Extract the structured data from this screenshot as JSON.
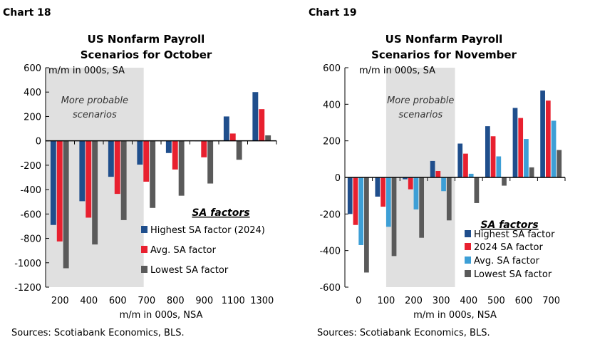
{
  "chart_data": [
    {
      "type": "bar",
      "label": "Chart 18",
      "title": [
        "US Nonfarm Payroll",
        "Scenarios for October"
      ],
      "ylabel": "m/m in 000s, SA",
      "xlabel": "m/m in 000s, NSA",
      "source": "Sources: Scotiabank Economics, BLS.",
      "ylim": [
        -1200,
        600
      ],
      "yticks": [
        600,
        400,
        200,
        0,
        -200,
        -400,
        -600,
        -800,
        -1000,
        -1200
      ],
      "categories": [
        "200",
        "400",
        "600",
        "700",
        "800",
        "900",
        "1100",
        "1300"
      ],
      "shaded_region": {
        "label": [
          "More probable",
          "scenarios"
        ],
        "categories": [
          "200",
          "400",
          "600",
          "700"
        ]
      },
      "legend_title": "SA factors",
      "legend_placement": "bottom-right",
      "series": [
        {
          "name": "Highest SA factor (2024)",
          "color": "#1f4e8c",
          "values": [
            -690,
            -495,
            -295,
            -195,
            -100,
            0,
            200,
            400
          ]
        },
        {
          "name": "Avg. SA factor",
          "color": "#e8202f",
          "values": [
            -825,
            -630,
            -435,
            -335,
            -235,
            -135,
            60,
            260
          ]
        },
        {
          "name": "Lowest SA factor",
          "color": "#5a5a5a",
          "values": [
            -1045,
            -850,
            -650,
            -550,
            -450,
            -350,
            -155,
            45
          ]
        }
      ]
    },
    {
      "type": "bar",
      "label": "Chart 19",
      "title": [
        "US Nonfarm Payroll",
        "Scenarios for November"
      ],
      "ylabel": "m/m in 000s, SA",
      "xlabel": "m/m in 000s, NSA",
      "source": "Sources: Scotiabank Economics, BLS.",
      "ylim": [
        -600,
        600
      ],
      "yticks": [
        600,
        400,
        200,
        0,
        -200,
        -400,
        -600
      ],
      "categories": [
        "0",
        "100",
        "200",
        "300",
        "400",
        "500",
        "600",
        "700"
      ],
      "shaded_region": {
        "label": [
          "More probable",
          "scenarios"
        ],
        "categories": [
          "100",
          "200",
          "300"
        ]
      },
      "legend_title": "SA factors",
      "legend_placement": "bottom-right",
      "series": [
        {
          "name": "Highest SA factor",
          "color": "#1f4e8c",
          "values": [
            -200,
            -105,
            -10,
            90,
            185,
            280,
            380,
            475
          ]
        },
        {
          "name": "2024 SA factor",
          "color": "#e8202f",
          "values": [
            -260,
            -160,
            -65,
            35,
            130,
            225,
            325,
            420
          ]
        },
        {
          "name": "Avg. SA factor",
          "color": "#3d9fd6",
          "values": [
            -370,
            -270,
            -175,
            -75,
            20,
            115,
            210,
            310
          ]
        },
        {
          "name": "Lowest SA factor",
          "color": "#5a5a5a",
          "values": [
            -520,
            -430,
            -330,
            -235,
            -140,
            -45,
            55,
            150
          ]
        }
      ]
    }
  ]
}
